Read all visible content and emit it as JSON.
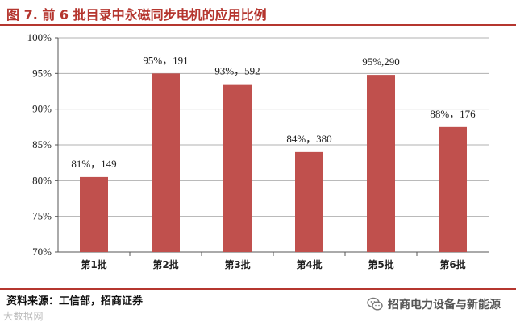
{
  "header": {
    "title": "图 7. 前 6 批目录中永磁同步电机的应用比例"
  },
  "chart_data": {
    "type": "bar",
    "categories": [
      "第1批",
      "第2批",
      "第3批",
      "第4批",
      "第5批",
      "第6批"
    ],
    "values": [
      0.805,
      0.95,
      0.935,
      0.84,
      0.948,
      0.875
    ],
    "data_labels": [
      "81%，149",
      "95%，191",
      "93%，592",
      "84%，380",
      "95%,290",
      "88%，176"
    ],
    "yticks": [
      "70%",
      "75%",
      "80%",
      "85%",
      "90%",
      "95%",
      "100%"
    ],
    "ylim": [
      0.7,
      1.0
    ],
    "grid": true,
    "bar_color": "#c0504d",
    "title": "",
    "xlabel": "",
    "ylabel": ""
  },
  "footer": {
    "source": "资料来源：工信部，招商证券",
    "wechat_account": "招商电力设备与新能源",
    "wechat_icon": "wechat-icon",
    "watermark": "大数据网"
  },
  "colors": {
    "accent": "#b5362f",
    "bar": "#c0504d",
    "grid": "#b0b0b0"
  }
}
